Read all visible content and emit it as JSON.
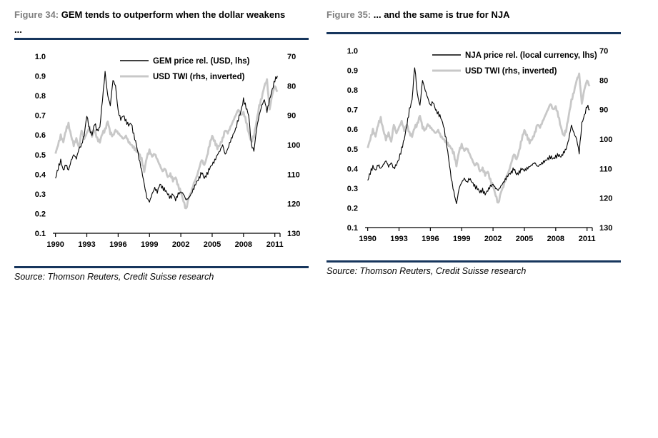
{
  "colors": {
    "accent_rule": "#17365D",
    "figure_label_gray": "#808080",
    "series_black": "#000000",
    "series_gray": "#C8C8C8",
    "axis_text": "#000000",
    "background": "#FFFFFF"
  },
  "panels": [
    {
      "figure_label": "Figure 34:",
      "figure_title": "GEM tends to outperform when the dollar weakens ...",
      "source": "Source: Thomson Reuters, Credit Suisse research"
    },
    {
      "figure_label": "Figure 35:",
      "figure_title": "... and the same is true for NJA",
      "source": "Source: Thomson Reuters, Credit Suisse research"
    }
  ],
  "chart_data": [
    {
      "type": "line",
      "title": "GEM price relative vs USD TWI",
      "x": {
        "start": 1990,
        "step_years": 0.25,
        "range": [
          1989.75,
          2011.5
        ],
        "tick_labels": [
          "1990",
          "1993",
          "1996",
          "1999",
          "2002",
          "2005",
          "2008",
          "2011"
        ]
      },
      "left_axis": {
        "range": [
          0.1,
          1.0
        ],
        "tick_labels": [
          "1.0",
          "0.9",
          "0.8",
          "0.7",
          "0.6",
          "0.5",
          "0.4",
          "0.3",
          "0.2",
          "0.1"
        ]
      },
      "right_axis": {
        "range": [
          70,
          130
        ],
        "inverted": true,
        "tick_labels": [
          "70",
          "80",
          "90",
          "100",
          "110",
          "120",
          "130"
        ]
      },
      "grid": false,
      "legend_position": "top-right-inside",
      "series": [
        {
          "name": "GEM price rel. (USD, lhs)",
          "axis": "left",
          "color_key": "series_black",
          "stroke_width": 1.1,
          "values": [
            0.38,
            0.43,
            0.47,
            0.42,
            0.45,
            0.42,
            0.47,
            0.5,
            0.48,
            0.53,
            0.55,
            0.6,
            0.7,
            0.63,
            0.6,
            0.66,
            0.62,
            0.64,
            0.78,
            0.92,
            0.8,
            0.75,
            0.88,
            0.85,
            0.72,
            0.68,
            0.7,
            0.67,
            0.65,
            0.66,
            0.6,
            0.55,
            0.48,
            0.42,
            0.35,
            0.28,
            0.26,
            0.3,
            0.33,
            0.31,
            0.35,
            0.33,
            0.32,
            0.3,
            0.28,
            0.3,
            0.27,
            0.3,
            0.31,
            0.3,
            0.27,
            0.28,
            0.3,
            0.33,
            0.36,
            0.38,
            0.41,
            0.38,
            0.4,
            0.43,
            0.45,
            0.47,
            0.5,
            0.52,
            0.55,
            0.5,
            0.53,
            0.57,
            0.6,
            0.63,
            0.68,
            0.72,
            0.78,
            0.74,
            0.7,
            0.55,
            0.52,
            0.63,
            0.7,
            0.75,
            0.78,
            0.72,
            0.78,
            0.83,
            0.88,
            0.9
          ]
        },
        {
          "name": "USD TWI (rhs, inverted)",
          "axis": "right",
          "color_key": "series_gray",
          "stroke_width": 2.8,
          "values": [
            103,
            100,
            97,
            99,
            95,
            93,
            97,
            100,
            98,
            101,
            95,
            98,
            96,
            94,
            97,
            95,
            98,
            99,
            96,
            95,
            92,
            96,
            97,
            95,
            96,
            97,
            98,
            97,
            99,
            100,
            101,
            102,
            103,
            105,
            109,
            104,
            102,
            104,
            103,
            105,
            107,
            109,
            108,
            111,
            110,
            112,
            111,
            114,
            116,
            119,
            122,
            118,
            116,
            113,
            111,
            108,
            105,
            107,
            104,
            100,
            97,
            99,
            101,
            100,
            98,
            95,
            96,
            94,
            92,
            90,
            88,
            90,
            89,
            92,
            96,
            99,
            97,
            92,
            87,
            84,
            80,
            78,
            88,
            83,
            80,
            82
          ]
        }
      ]
    },
    {
      "type": "line",
      "title": "NJA price relative vs USD TWI",
      "x": {
        "start": 1990,
        "step_years": 0.25,
        "range": [
          1989.75,
          2011.5
        ],
        "tick_labels": [
          "1990",
          "1993",
          "1996",
          "1999",
          "2002",
          "2005",
          "2008",
          "2011"
        ]
      },
      "left_axis": {
        "range": [
          0.1,
          1.0
        ],
        "tick_labels": [
          "1.0",
          "0.9",
          "0.8",
          "0.7",
          "0.6",
          "0.5",
          "0.4",
          "0.3",
          "0.2",
          "0.1"
        ]
      },
      "right_axis": {
        "range": [
          70,
          130
        ],
        "inverted": true,
        "tick_labels": [
          "70",
          "80",
          "90",
          "100",
          "110",
          "120",
          "130"
        ]
      },
      "grid": false,
      "legend_position": "top-right-inside",
      "series": [
        {
          "name": "NJA price rel. (local currency, lhs)",
          "axis": "left",
          "color_key": "series_black",
          "stroke_width": 1.1,
          "values": [
            0.34,
            0.38,
            0.41,
            0.39,
            0.42,
            0.4,
            0.42,
            0.44,
            0.41,
            0.43,
            0.4,
            0.42,
            0.45,
            0.5,
            0.55,
            0.62,
            0.7,
            0.75,
            0.92,
            0.78,
            0.72,
            0.85,
            0.8,
            0.76,
            0.72,
            0.74,
            0.7,
            0.68,
            0.66,
            0.62,
            0.55,
            0.45,
            0.35,
            0.28,
            0.22,
            0.3,
            0.33,
            0.35,
            0.33,
            0.35,
            0.33,
            0.31,
            0.3,
            0.28,
            0.29,
            0.27,
            0.29,
            0.31,
            0.32,
            0.3,
            0.29,
            0.31,
            0.33,
            0.35,
            0.37,
            0.38,
            0.4,
            0.37,
            0.38,
            0.4,
            0.39,
            0.4,
            0.41,
            0.42,
            0.43,
            0.41,
            0.42,
            0.43,
            0.44,
            0.45,
            0.46,
            0.45,
            0.46,
            0.47,
            0.46,
            0.48,
            0.5,
            0.55,
            0.62,
            0.58,
            0.55,
            0.48,
            0.63,
            0.67,
            0.72,
            0.7
          ]
        },
        {
          "name": "USD TWI (rhs, inverted)",
          "axis": "right",
          "color_key": "series_gray",
          "stroke_width": 2.8,
          "values": [
            103,
            100,
            97,
            99,
            95,
            93,
            97,
            100,
            98,
            101,
            95,
            98,
            96,
            94,
            97,
            95,
            98,
            99,
            96,
            95,
            92,
            96,
            97,
            95,
            96,
            97,
            98,
            97,
            99,
            100,
            101,
            102,
            103,
            105,
            109,
            104,
            102,
            104,
            103,
            105,
            107,
            109,
            108,
            111,
            110,
            112,
            111,
            114,
            116,
            119,
            122,
            118,
            116,
            113,
            111,
            108,
            105,
            107,
            104,
            100,
            97,
            99,
            101,
            100,
            98,
            95,
            96,
            94,
            92,
            90,
            88,
            90,
            89,
            92,
            96,
            99,
            97,
            92,
            87,
            84,
            80,
            78,
            88,
            83,
            80,
            82
          ]
        }
      ]
    }
  ]
}
